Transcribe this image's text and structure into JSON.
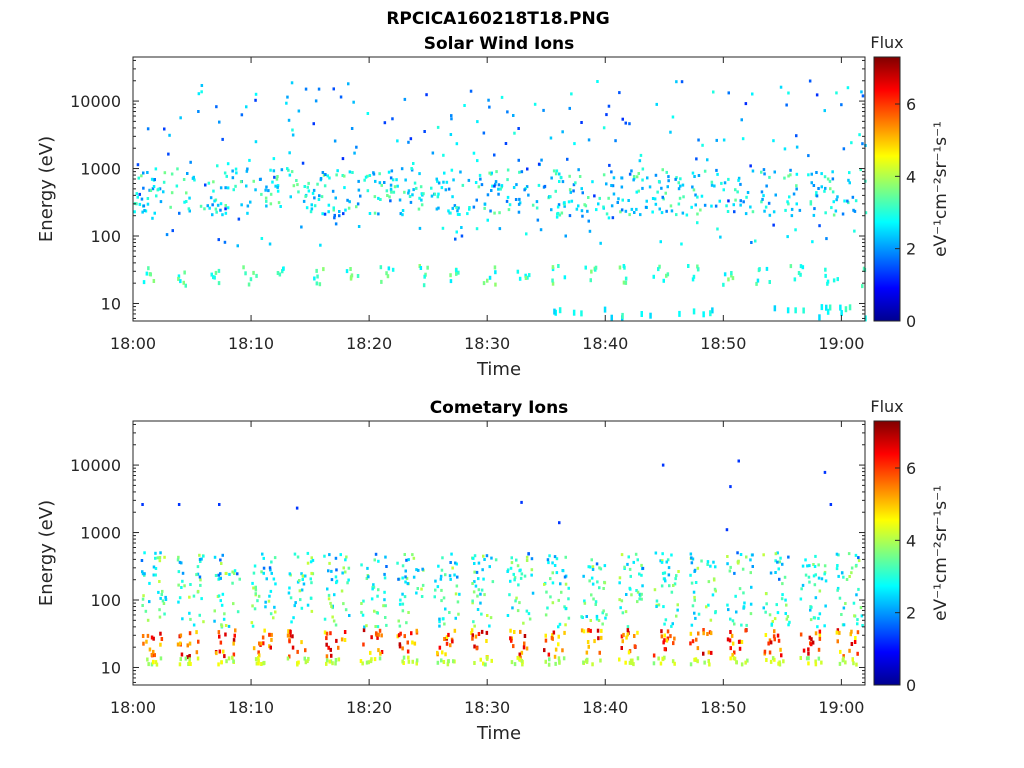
{
  "figure": {
    "title": "RPCICA160218T18.PNG"
  },
  "chart_data": [
    {
      "type": "heatmap",
      "title": "Solar Wind Ions",
      "xlabel": "Time",
      "ylabel": "Energy (eV)",
      "yscale": "log",
      "ylim": [
        5.5,
        45000
      ],
      "xlim": [
        "18:00",
        "19:02"
      ],
      "x_tick_labels": [
        "18:00",
        "18:10",
        "18:20",
        "18:30",
        "18:40",
        "18:50",
        "19:00"
      ],
      "y_tick_labels": [
        "10",
        "100",
        "1000",
        "10000"
      ],
      "colorbar": {
        "title": "Flux",
        "label": "eV⁻¹cm⁻²sr⁻¹s⁻¹",
        "range": [
          0,
          7.3
        ],
        "tick_labels": [
          "0",
          "2",
          "4",
          "6"
        ],
        "colormap": "jet"
      },
      "description": "sparse spectrogram with sporadic flux ~2-4 near 25 eV, 300-700 eV and scattered counts up to ~25000 eV",
      "grid": false
    },
    {
      "type": "heatmap",
      "title": "Cometary Ions",
      "xlabel": "Time",
      "ylabel": "Energy (eV)",
      "yscale": "log",
      "ylim": [
        5.5,
        45000
      ],
      "xlim": [
        "18:00",
        "19:02"
      ],
      "x_tick_labels": [
        "18:00",
        "18:10",
        "18:20",
        "18:30",
        "18:40",
        "18:50",
        "19:00"
      ],
      "y_tick_labels": [
        "10",
        "100",
        "1000",
        "10000"
      ],
      "colorbar": {
        "title": "Flux",
        "label": "eV⁻¹cm⁻²sr⁻¹s⁻¹",
        "range": [
          0,
          7.3
        ],
        "tick_labels": [
          "0",
          "2",
          "4",
          "6"
        ],
        "colormap": "jet"
      },
      "description": "periodic bursts (~3 min) with peak flux ~6-7 at 15-30 eV and flux ~2-4 extending to ~500 eV",
      "grid": false
    }
  ]
}
